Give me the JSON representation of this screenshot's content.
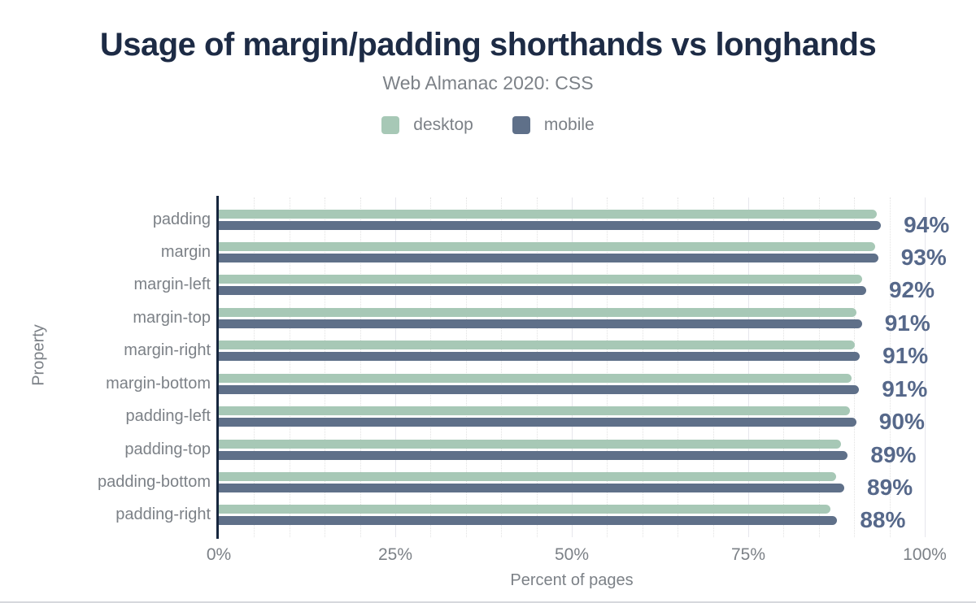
{
  "chart_data": {
    "type": "bar",
    "orientation": "horizontal",
    "title": "Usage of margin/padding shorthands vs longhands",
    "subtitle": "Web Almanac 2020: CSS",
    "xlabel": "Percent of pages",
    "ylabel": "Property",
    "xlim": [
      0,
      100
    ],
    "x_ticks": [
      {
        "label": "0%",
        "value": 0
      },
      {
        "label": "25%",
        "value": 25
      },
      {
        "label": "50%",
        "value": 50
      },
      {
        "label": "75%",
        "value": 75
      },
      {
        "label": "100%",
        "value": 100
      }
    ],
    "grid": {
      "minor_step_pct": 5,
      "major_step_pct": 25,
      "minor_style": "dotted",
      "major_style": "solid"
    },
    "legend_position": "top",
    "categories": [
      "padding",
      "margin",
      "margin-left",
      "margin-top",
      "margin-right",
      "margin-bottom",
      "padding-left",
      "padding-top",
      "padding-bottom",
      "padding-right"
    ],
    "series": [
      {
        "name": "desktop",
        "color": "#a7c8b6",
        "values": [
          93.2,
          93.0,
          91.1,
          90.3,
          90.1,
          89.6,
          89.4,
          88.1,
          87.4,
          86.6
        ]
      },
      {
        "name": "mobile",
        "color": "#5f7089",
        "values": [
          93.8,
          93.4,
          91.7,
          91.1,
          90.8,
          90.7,
          90.3,
          89.1,
          88.6,
          87.6
        ]
      }
    ],
    "value_labels": [
      "94%",
      "93%",
      "92%",
      "91%",
      "91%",
      "91%",
      "90%",
      "89%",
      "89%",
      "88%"
    ]
  },
  "colors": {
    "background": "#ffffff",
    "title": "#1d2b45",
    "muted_text": "#7c8187",
    "axis": "#16263e",
    "value_label": "#56688a",
    "desktop_bar": "#a7c8b6",
    "mobile_bar": "#5f7089",
    "grid_minor": "#e2e2e2",
    "grid_major": "#e6e6ec",
    "bottom_border": "#d6d8dd"
  }
}
